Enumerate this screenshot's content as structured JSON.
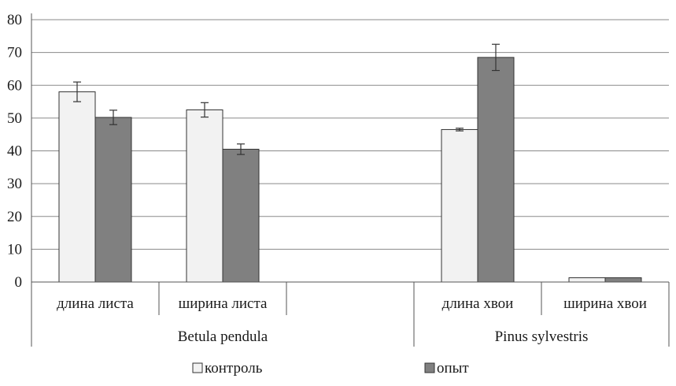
{
  "chart_data": {
    "type": "bar",
    "ylim": [
      0,
      80
    ],
    "yticks": [
      0,
      10,
      20,
      30,
      40,
      50,
      60,
      70,
      80
    ],
    "grid": true,
    "legend_position": "bottom",
    "groups": [
      {
        "label": "Betula pendula",
        "categories": [
          "длина листа",
          "ширина листа",
          ""
        ]
      },
      {
        "label": "Pinus sylvestris",
        "categories": [
          "длина хвои",
          "ширина хвои"
        ]
      }
    ],
    "categories": [
      "длина листа",
      "ширина листа",
      "",
      "длина хвои",
      "ширина хвои"
    ],
    "series": [
      {
        "name": "контроль",
        "color": "#f2f2f2",
        "values": [
          58.0,
          52.5,
          null,
          46.5,
          1.3
        ],
        "errors": [
          3.0,
          2.2,
          null,
          0.4,
          null
        ]
      },
      {
        "name": "опыт",
        "color": "#808080",
        "values": [
          50.2,
          40.5,
          null,
          68.5,
          1.3
        ],
        "errors": [
          2.2,
          1.6,
          null,
          4.0,
          null
        ]
      }
    ]
  }
}
